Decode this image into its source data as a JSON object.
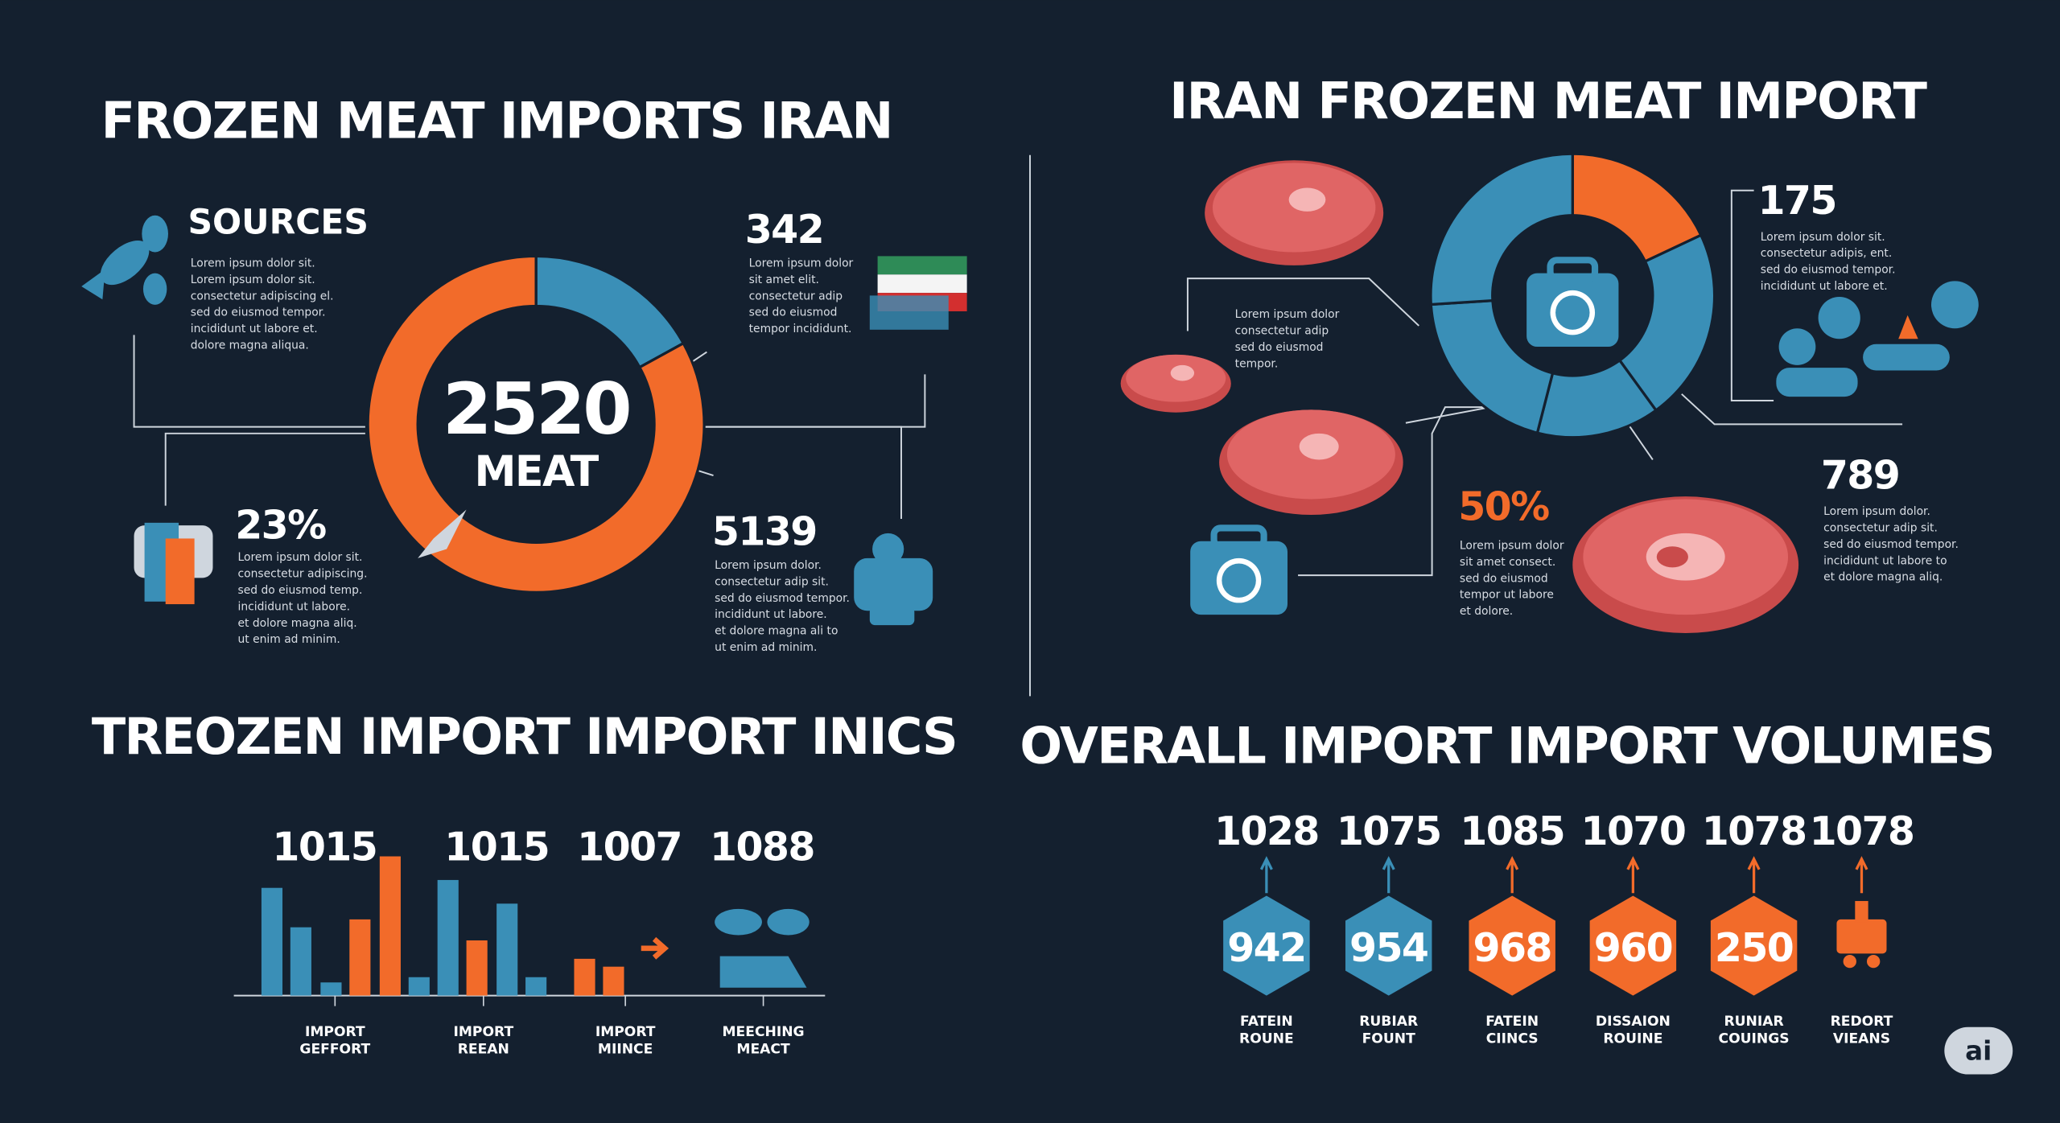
{
  "left": {
    "title": "FROZEN MEAT IMPORTS IRAN",
    "sources": {
      "title": "SOURCES",
      "text": [
        "Lorem ipsum dolor sit.",
        "Lorem ipsum dolor sit.",
        "consectetur adipiscing el.",
        "sed do eiusmod tempor.",
        "incididunt ut labore et.",
        "dolore magna aliqua."
      ]
    },
    "donut": {
      "center_value": "2520",
      "center_label": "MEAT",
      "segments": [
        {
          "value": 17,
          "color": "#3a8fb7"
        },
        {
          "value": 83,
          "color": "#f26b2a"
        }
      ]
    },
    "callouts": [
      {
        "value": "342",
        "text": [
          "Lorem ipsum dolor",
          "sit amet elit.",
          "consectetur adip",
          "sed do eiusmod",
          "tempor incididunt."
        ]
      },
      {
        "value": "23%",
        "text": [
          "Lorem ipsum dolor sit.",
          "consectetur adipiscing.",
          "sed do eiusmod temp.",
          "incididunt ut labore.",
          "et dolore magna aliq.",
          "ut enim ad minim."
        ]
      },
      {
        "value": "5139",
        "text": [
          "Lorem ipsum dolor.",
          "consectetur adip sit.",
          "sed do eiusmod tempor.",
          "incididunt ut labore.",
          "et dolore magna ali to",
          "ut enim ad minim."
        ]
      }
    ]
  },
  "bottom_left": {
    "title": "TREOZEN IMPORT IMPORT INICS",
    "labels": [
      "1015",
      "1015",
      "1007",
      "1088"
    ],
    "bars": [
      {
        "value": 82,
        "color": "#3a8fb7"
      },
      {
        "value": 52,
        "color": "#3a8fb7"
      },
      {
        "value": 10,
        "color": "#3a8fb7"
      },
      {
        "value": 58,
        "color": "#f26b2a"
      },
      {
        "value": 106,
        "color": "#f26b2a"
      },
      {
        "value": 14,
        "color": "#3a8fb7"
      },
      {
        "value": 88,
        "color": "#3a8fb7"
      },
      {
        "value": 42,
        "color": "#f26b2a"
      },
      {
        "value": 70,
        "color": "#3a8fb7"
      },
      {
        "value": 14,
        "color": "#3a8fb7"
      },
      {
        "value": 28,
        "color": "#f26b2a"
      },
      {
        "value": 22,
        "color": "#f26b2a"
      }
    ],
    "categories": [
      [
        "IMPORT",
        "GEFFORT"
      ],
      [
        "IMPORT",
        "REEAN"
      ],
      [
        "IMPORT",
        "MIINCE"
      ],
      [
        "MEECHING",
        "MEACT"
      ]
    ]
  },
  "right": {
    "title": "IRAN FROZEN MEAT IMPORT",
    "donut": {
      "segments": [
        {
          "value": 18,
          "color": "#f26b2a"
        },
        {
          "value": 22,
          "color": "#3a8fb7"
        },
        {
          "value": 14,
          "color": "#3a8fb7"
        },
        {
          "value": 20,
          "color": "#3a8fb7"
        },
        {
          "value": 26,
          "color": "#3a8fb7"
        }
      ]
    },
    "callouts": [
      {
        "value": "175",
        "text": [
          "Lorem ipsum dolor sit.",
          "consectetur adipis, ent.",
          "sed do eiusmod tempor.",
          "incididunt ut labore et."
        ]
      },
      {
        "value": "789",
        "text": [
          "Lorem ipsum dolor.",
          "consectetur adip sit.",
          "sed do eiusmod tempor.",
          "incididunt ut labore to",
          "et dolore magna aliq."
        ]
      },
      {
        "value": "50%",
        "text": [
          "Lorem ipsum dolor",
          "sit amet consect.",
          "sed do eiusmod",
          "tempor ut labore",
          "et dolore."
        ]
      },
      {
        "value": "",
        "text": [
          "Lorem ipsum dolor",
          "consectetur adip",
          "sed do eiusmod",
          "tempor."
        ]
      }
    ]
  },
  "bottom_right": {
    "title": "OVERALL IMPORT IMPORT VOLUMES",
    "items": [
      {
        "top": "1028",
        "inner": "942",
        "color": "#3a8fb7",
        "label": [
          "FATEIN",
          "ROUNE"
        ]
      },
      {
        "top": "1075",
        "inner": "954",
        "color": "#3a8fb7",
        "label": [
          "RUBIAR",
          "FOUNT"
        ]
      },
      {
        "top": "1085",
        "inner": "968",
        "color": "#f26b2a",
        "label": [
          "FATEIN",
          "CIINCS"
        ]
      },
      {
        "top": "1070",
        "inner": "960",
        "color": "#f26b2a",
        "label": [
          "DISSAION",
          "ROUINE"
        ]
      },
      {
        "top": "1078",
        "inner": "250",
        "color": "#f26b2a",
        "label": [
          "RUNIAR",
          "COUINGS"
        ]
      },
      {
        "top": "1078",
        "label": [
          "REDORT",
          "VIEANS"
        ]
      }
    ]
  },
  "badge": "ai"
}
